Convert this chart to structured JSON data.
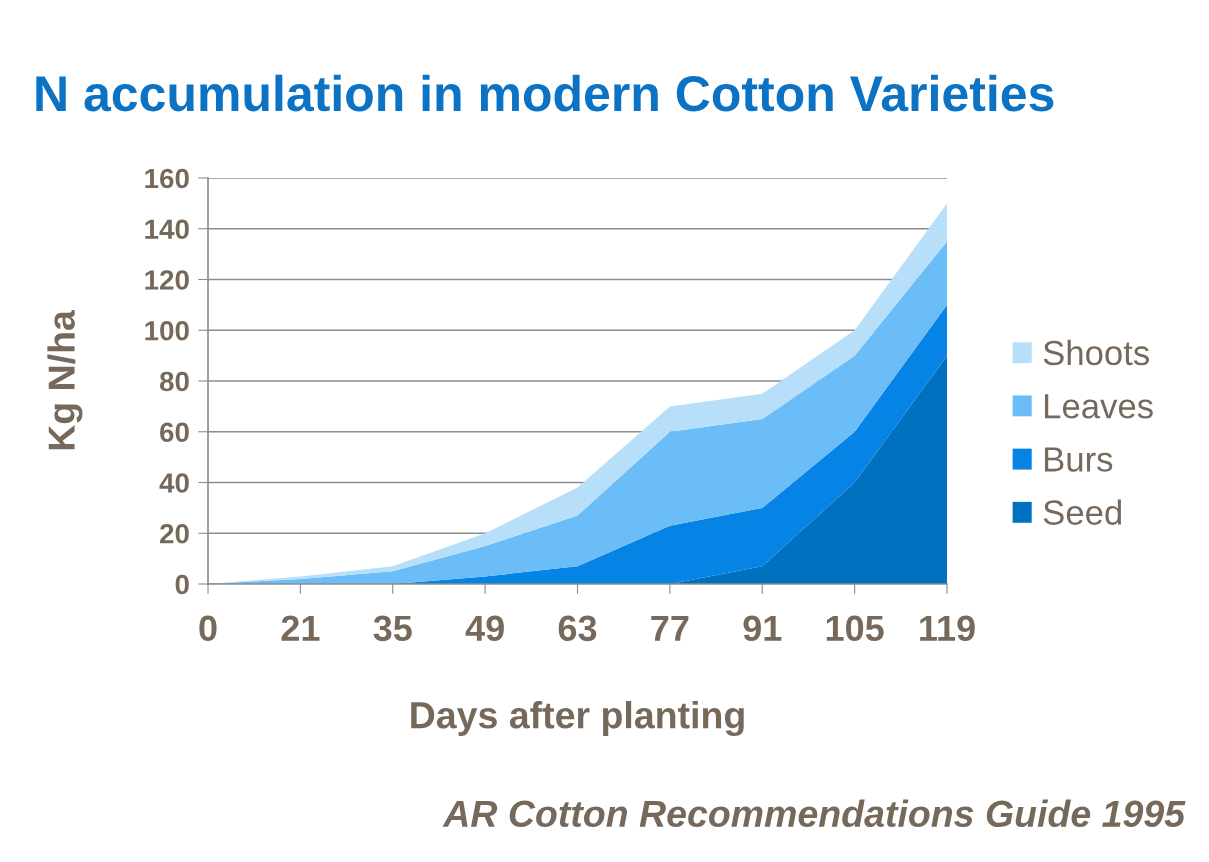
{
  "chart_data": {
    "type": "area",
    "title": "N accumulation in modern Cotton Varieties",
    "xlabel": "Days after planting",
    "ylabel": "Kg N/ha",
    "categories": [
      "0",
      "21",
      "35",
      "49",
      "63",
      "77",
      "91",
      "105",
      "119"
    ],
    "stacked": true,
    "series": [
      {
        "name": "Seed",
        "color": "#0070c0",
        "values": [
          0,
          0,
          0,
          0,
          0,
          0,
          7,
          40,
          90
        ]
      },
      {
        "name": "Burs",
        "color": "#0584e6",
        "values": [
          0,
          0,
          0,
          3,
          7,
          23,
          23,
          20,
          20
        ]
      },
      {
        "name": "Leaves",
        "color": "#6bbdf8",
        "values": [
          0,
          2,
          5,
          12,
          20,
          37,
          35,
          30,
          25
        ]
      },
      {
        "name": "Shoots",
        "color": "#b8dff9",
        "values": [
          0,
          1,
          2,
          5,
          11,
          10,
          10,
          10,
          15
        ]
      }
    ],
    "ylim": [
      0,
      160
    ],
    "yticks": [
      0,
      20,
      40,
      60,
      80,
      100,
      120,
      140,
      160
    ],
    "grid": "y",
    "legend": "right",
    "annotations": [
      "AR Cotton Recommendations Guide 1995"
    ]
  }
}
